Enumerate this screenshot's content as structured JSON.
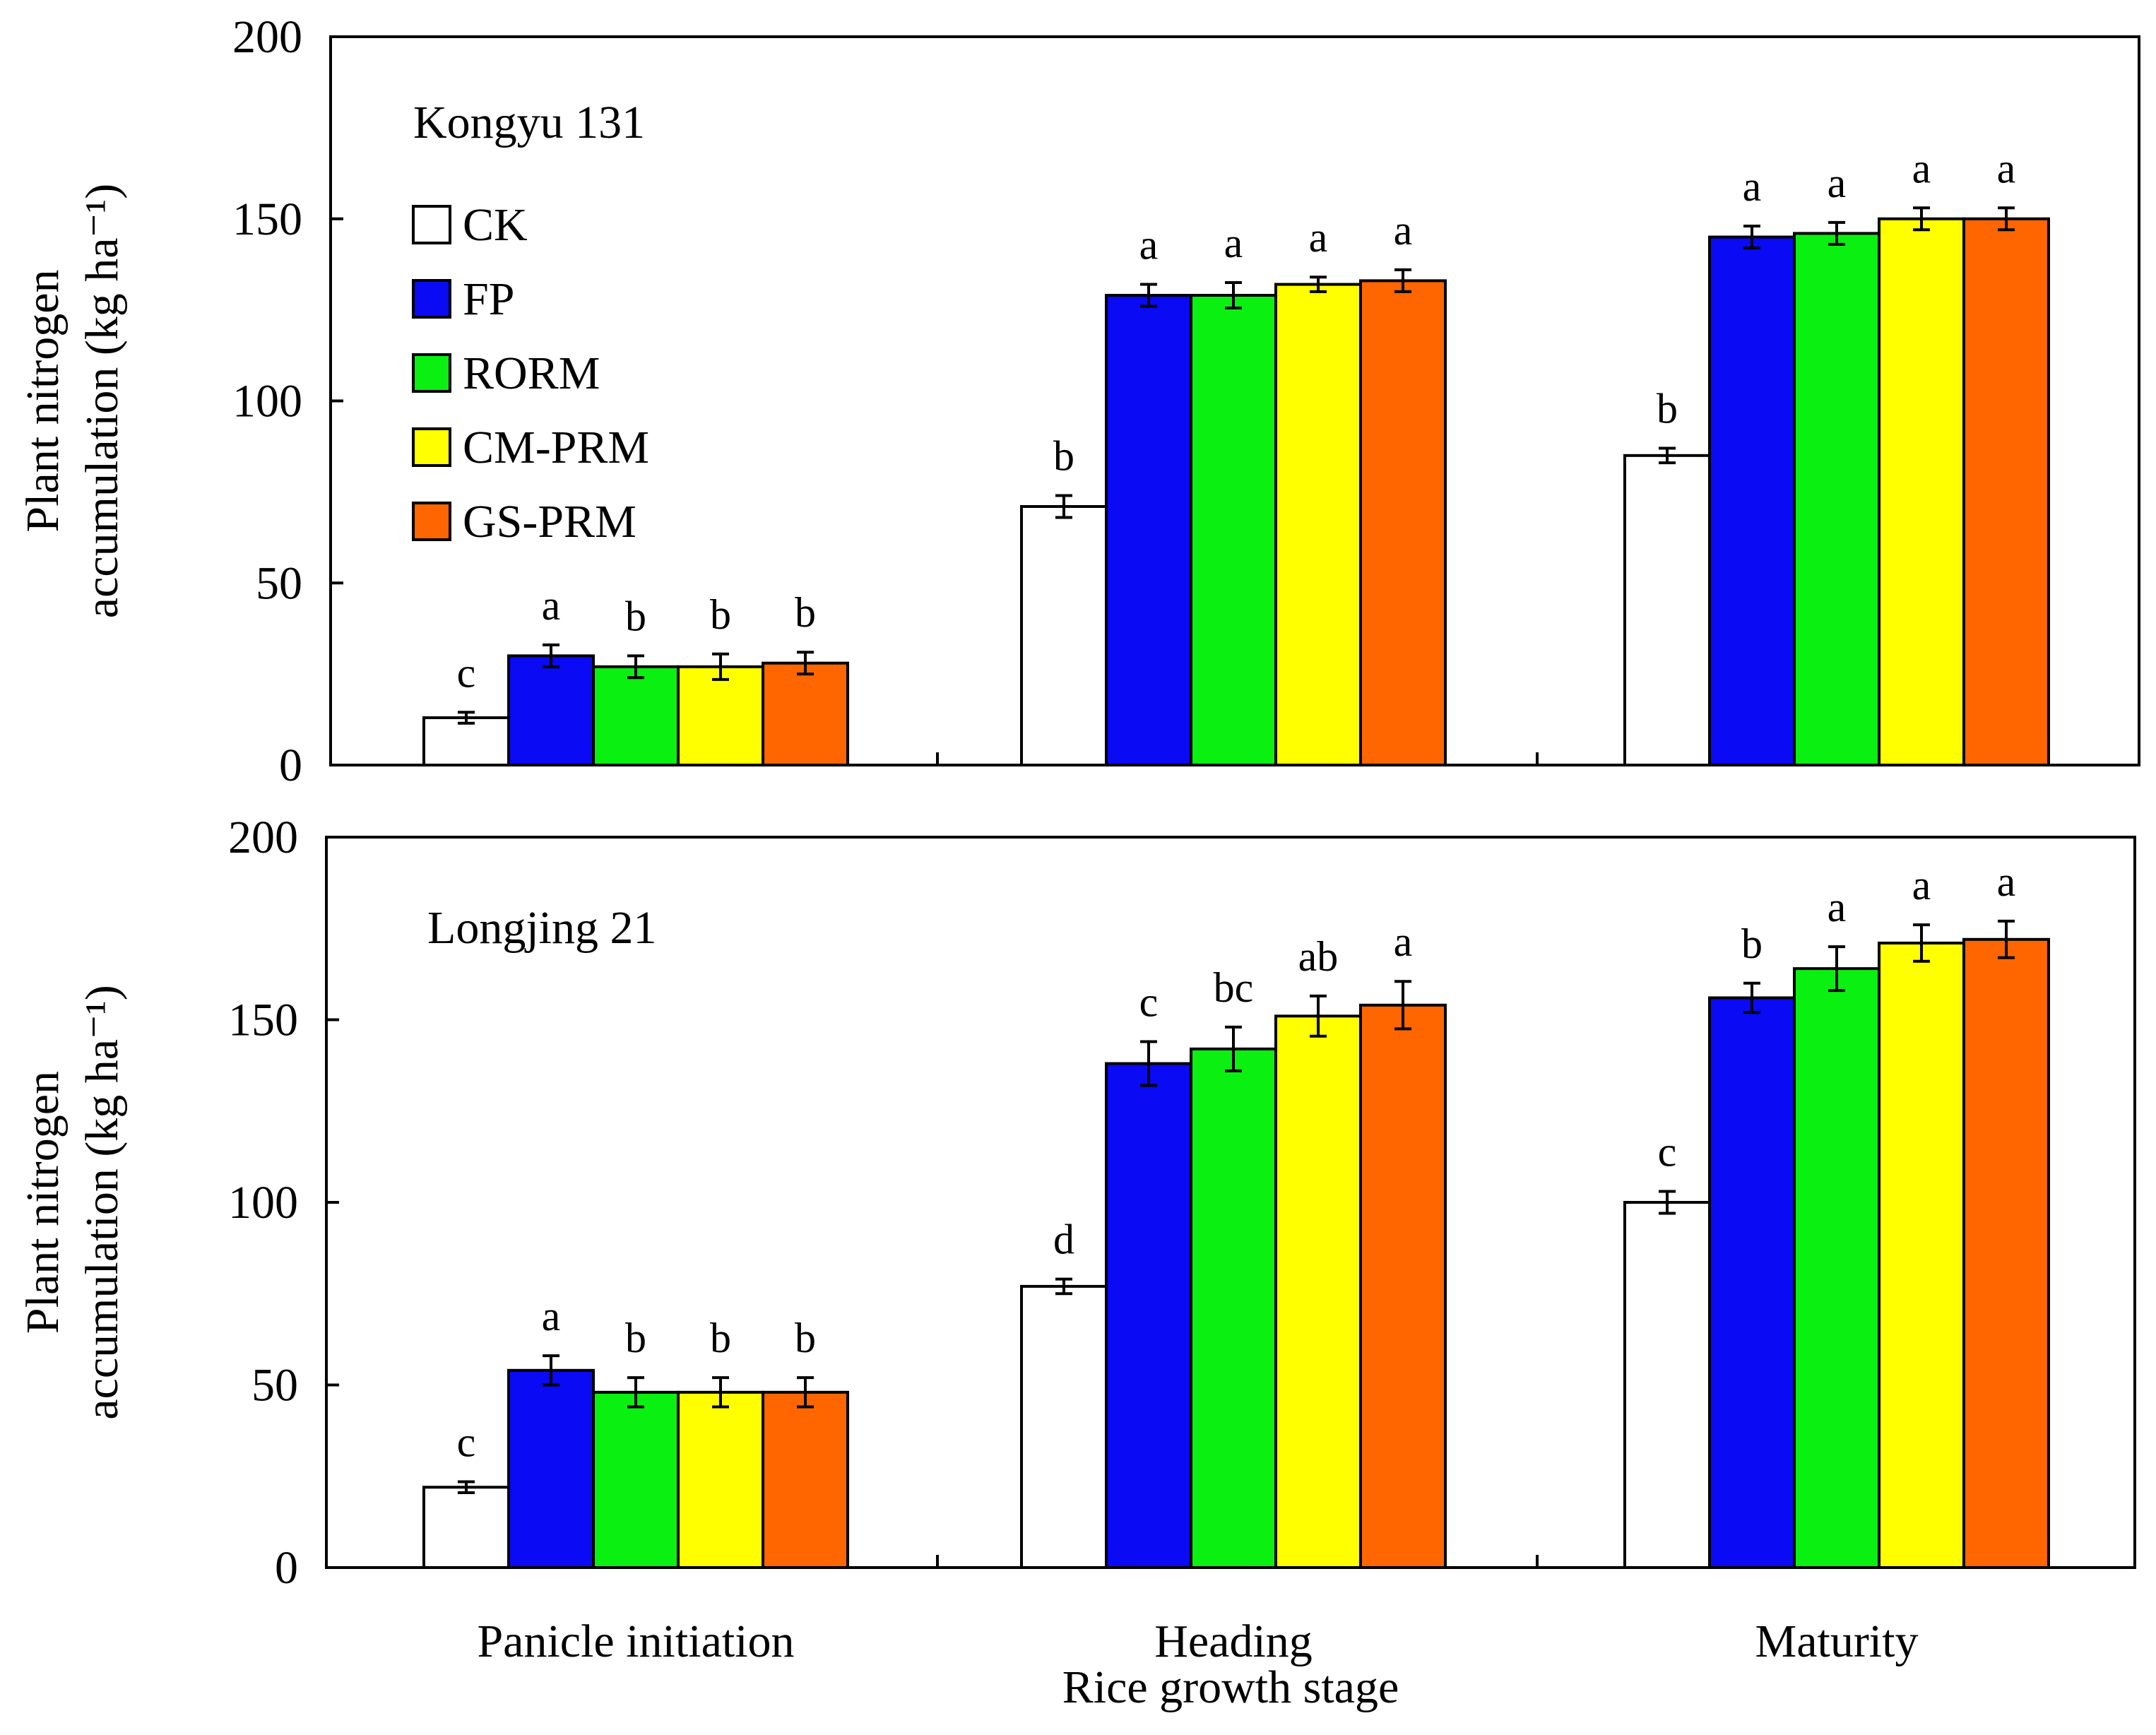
{
  "legend": [
    {
      "label": "CK",
      "color": "#ffffff"
    },
    {
      "label": "FP",
      "color": "#0a0af5"
    },
    {
      "label": "RORM",
      "color": "#0af010"
    },
    {
      "label": "CM-PRM",
      "color": "#ffff00"
    },
    {
      "label": "GS-PRM",
      "color": "#ff6600"
    }
  ],
  "y_axis_title_line1": "Plant nitrogen",
  "y_axis_title_line2": "accumulation (kg ha⁻¹)",
  "x_axis_title": "Rice growth  stage",
  "chart_data": [
    {
      "type": "bar",
      "title": "Kongyu  131",
      "categories": [
        "Panicle initiation",
        "Heading",
        "Maturity"
      ],
      "ylim": [
        0,
        200
      ],
      "yticks": [
        0,
        50,
        100,
        150,
        200
      ],
      "ylabel": "Plant nitrogen accumulation (kg ha⁻¹)",
      "series": [
        {
          "name": "CK",
          "values": [
            13,
            71,
            85
          ],
          "errors": [
            1.5,
            3,
            2
          ],
          "letters": [
            "c",
            "b",
            "b"
          ]
        },
        {
          "name": "FP",
          "values": [
            30,
            129,
            145
          ],
          "errors": [
            3,
            3,
            3
          ],
          "letters": [
            "a",
            "a",
            "a"
          ]
        },
        {
          "name": "RORM",
          "values": [
            27,
            129,
            146
          ],
          "errors": [
            3,
            3.5,
            3
          ],
          "letters": [
            "b",
            "a",
            "a"
          ]
        },
        {
          "name": "CM-PRM",
          "values": [
            27,
            132,
            150
          ],
          "errors": [
            3.5,
            2,
            3
          ],
          "letters": [
            "b",
            "a",
            "a"
          ]
        },
        {
          "name": "GS-PRM",
          "values": [
            28,
            133,
            150
          ],
          "errors": [
            3,
            3,
            3
          ],
          "letters": [
            "b",
            "a",
            "a"
          ]
        }
      ]
    },
    {
      "type": "bar",
      "title": "Longjing  21",
      "categories": [
        "Panicle initiation",
        "Heading",
        "Maturity"
      ],
      "xlabel": "Rice growth  stage",
      "ylim": [
        0,
        200
      ],
      "yticks": [
        0,
        50,
        100,
        150,
        200
      ],
      "ylabel": "Plant nitrogen accumulation (kg ha⁻¹)",
      "series": [
        {
          "name": "CK",
          "values": [
            22,
            77,
            100
          ],
          "errors": [
            1.5,
            2,
            3
          ],
          "letters": [
            "c",
            "d",
            "c"
          ]
        },
        {
          "name": "FP",
          "values": [
            54,
            138,
            156
          ],
          "errors": [
            4,
            6,
            4
          ],
          "letters": [
            "a",
            "c",
            "b"
          ]
        },
        {
          "name": "RORM",
          "values": [
            48,
            142,
            164
          ],
          "errors": [
            4,
            6,
            6
          ],
          "letters": [
            "b",
            "bc",
            "a"
          ]
        },
        {
          "name": "CM-PRM",
          "values": [
            48,
            151,
            171
          ],
          "errors": [
            4,
            5.5,
            5
          ],
          "letters": [
            "b",
            "ab",
            "a"
          ]
        },
        {
          "name": "GS-PRM",
          "values": [
            48,
            154,
            172
          ],
          "errors": [
            4,
            6.5,
            5
          ],
          "letters": [
            "b",
            "a",
            "a"
          ]
        }
      ]
    }
  ]
}
